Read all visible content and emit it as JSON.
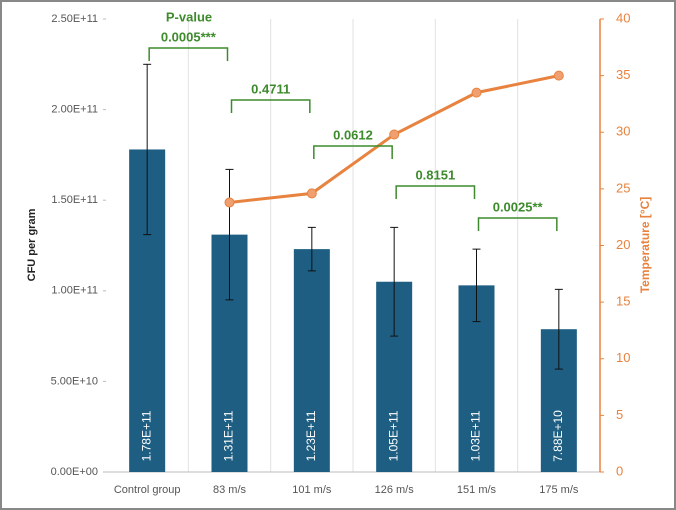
{
  "chart_data": {
    "type": "bar_line",
    "categories": [
      "Control group",
      "83 m/s",
      "101 m/s",
      "126 m/s",
      "151 m/s",
      "175 m/s"
    ],
    "series": [
      {
        "name": "CFU per gram",
        "color": "#1d5e82",
        "axis": "y",
        "values": [
          178000000000,
          131000000000,
          123000000000,
          105000000000,
          103000000000,
          78800000000
        ],
        "value_labels": [
          "1.78E+11",
          "1.31E+11",
          "1.23E+11",
          "1.05E+11",
          "1.03E+11",
          "7.88E+10"
        ],
        "errors": [
          47000000000,
          36000000000,
          12000000000,
          30000000000,
          20000000000,
          22000000000
        ]
      },
      {
        "name": "Temperature [°C]",
        "color": "#e8823f",
        "axis": "y2",
        "values": [
          null,
          23.8,
          24.6,
          29.8,
          33.5,
          35.0
        ]
      }
    ],
    "ylabel": "CFU per gram",
    "y2label": "Temperature [°C]",
    "ylim": [
      0,
      250000000000
    ],
    "yticks": [
      {
        "value": 0,
        "label": "0.00E+00"
      },
      {
        "value": 50000000000,
        "label": "5.00E+10"
      },
      {
        "value": 100000000000,
        "label": "1.00E+11"
      },
      {
        "value": 150000000000,
        "label": "1.50E+11"
      },
      {
        "value": 200000000000,
        "label": "2.00E+11"
      },
      {
        "value": 250000000000,
        "label": "2.50E+11"
      }
    ],
    "y2lim": [
      0,
      40
    ],
    "y2ticks": [
      0,
      5,
      10,
      15,
      20,
      25,
      30,
      35,
      40
    ],
    "p_value_title": "P-value",
    "p_values": [
      "0.0005***",
      "0.4711",
      "0.0612",
      "0.8151",
      "0.0025**"
    ],
    "p_value_color": "#3d8b2c"
  }
}
